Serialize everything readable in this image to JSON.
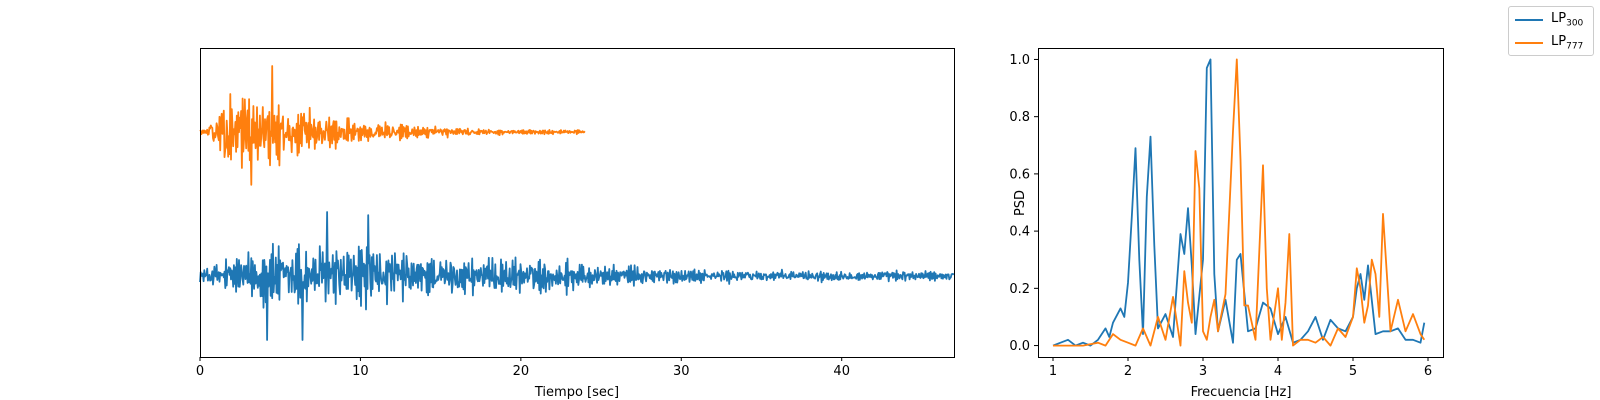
{
  "chart_data": [
    {
      "type": "line",
      "title": "",
      "xlabel": "Tiempo [sec]",
      "ylabel": "",
      "xlim": [
        0,
        47
      ],
      "xticks": [
        0,
        10,
        20,
        30,
        40
      ],
      "yticks_visible": false,
      "grid": false,
      "series": [
        {
          "name": "LP_300",
          "color": "#1f77b4",
          "duration": 47,
          "baseline": 0,
          "envelope": {
            "x": [
              0,
              1,
              2,
              3,
              4,
              5,
              6,
              7,
              8,
              9,
              10,
              11,
              12,
              14,
              16,
              18,
              20,
              23,
              25,
              28,
              30,
              35,
              40,
              47
            ],
            "amp": [
              0.18,
              0.4,
              0.55,
              0.7,
              0.9,
              0.75,
              0.95,
              0.85,
              0.9,
              0.85,
              0.95,
              0.8,
              0.7,
              0.6,
              0.55,
              0.5,
              0.45,
              0.4,
              0.3,
              0.25,
              0.2,
              0.18,
              0.15,
              0.13
            ]
          },
          "extremes": [
            {
              "x": 4.2,
              "y": -1.0
            },
            {
              "x": 6.4,
              "y": -1.0
            },
            {
              "x": 7.9,
              "y": 1.0
            },
            {
              "x": 10.5,
              "y": 0.95
            }
          ]
        },
        {
          "name": "LP_777",
          "color": "#ff7f0e",
          "duration": 24,
          "baseline": 1,
          "envelope": {
            "x": [
              0,
              0.5,
              1,
              1.5,
              2,
              3,
              4,
              4.5,
              5,
              6,
              7,
              8,
              9,
              10,
              12,
              14,
              16,
              18,
              20,
              24
            ],
            "amp": [
              0.1,
              0.25,
              0.6,
              0.85,
              1.0,
              0.95,
              0.95,
              1.0,
              0.8,
              0.75,
              0.55,
              0.5,
              0.35,
              0.3,
              0.2,
              0.15,
              0.12,
              0.08,
              0.06,
              0.05
            ]
          },
          "extremes": [
            {
              "x": 4.5,
              "y": 1.0
            },
            {
              "x": 3.2,
              "y": -0.8
            }
          ]
        }
      ]
    },
    {
      "type": "line",
      "title": "",
      "xlabel": "Frecuencia [Hz]",
      "ylabel": "PSD",
      "xlim": [
        0.8,
        6.2
      ],
      "ylim": [
        -0.04,
        1.04
      ],
      "xticks": [
        1,
        2,
        3,
        4,
        5,
        6
      ],
      "yticks": [
        0.0,
        0.2,
        0.4,
        0.6,
        0.8,
        1.0
      ],
      "ytick_labels": [
        "0.0",
        "0.2",
        "0.4",
        "0.6",
        "0.8",
        "1.0"
      ],
      "grid": false,
      "series": [
        {
          "name": "LP_300",
          "color": "#1f77b4",
          "x": [
            1.0,
            1.1,
            1.2,
            1.3,
            1.4,
            1.5,
            1.6,
            1.7,
            1.75,
            1.8,
            1.9,
            1.95,
            2.0,
            2.05,
            2.1,
            2.15,
            2.2,
            2.25,
            2.3,
            2.35,
            2.4,
            2.5,
            2.6,
            2.7,
            2.75,
            2.8,
            2.85,
            2.9,
            3.0,
            3.05,
            3.1,
            3.15,
            3.2,
            3.3,
            3.4,
            3.45,
            3.5,
            3.6,
            3.7,
            3.8,
            3.9,
            4.0,
            4.1,
            4.2,
            4.3,
            4.4,
            4.5,
            4.6,
            4.7,
            4.8,
            4.9,
            5.0,
            5.05,
            5.1,
            5.15,
            5.2,
            5.3,
            5.4,
            5.5,
            5.6,
            5.7,
            5.8,
            5.9,
            5.95
          ],
          "y": [
            0.0,
            0.01,
            0.02,
            0.0,
            0.01,
            0.0,
            0.02,
            0.06,
            0.03,
            0.08,
            0.13,
            0.1,
            0.22,
            0.45,
            0.69,
            0.3,
            0.04,
            0.52,
            0.73,
            0.35,
            0.06,
            0.11,
            0.03,
            0.39,
            0.32,
            0.48,
            0.28,
            0.04,
            0.3,
            0.97,
            1.0,
            0.25,
            0.05,
            0.16,
            0.01,
            0.3,
            0.32,
            0.05,
            0.06,
            0.15,
            0.13,
            0.04,
            0.1,
            0.01,
            0.02,
            0.05,
            0.1,
            0.02,
            0.09,
            0.06,
            0.05,
            0.1,
            0.2,
            0.25,
            0.16,
            0.28,
            0.04,
            0.05,
            0.05,
            0.06,
            0.02,
            0.02,
            0.01,
            0.08
          ]
        },
        {
          "name": "LP_777",
          "color": "#ff7f0e",
          "x": [
            1.0,
            1.2,
            1.4,
            1.6,
            1.7,
            1.8,
            1.9,
            2.0,
            2.1,
            2.2,
            2.3,
            2.4,
            2.5,
            2.6,
            2.7,
            2.75,
            2.8,
            2.85,
            2.9,
            2.95,
            3.0,
            3.05,
            3.1,
            3.15,
            3.2,
            3.3,
            3.4,
            3.45,
            3.5,
            3.55,
            3.6,
            3.7,
            3.8,
            3.85,
            3.9,
            4.0,
            4.05,
            4.1,
            4.15,
            4.2,
            4.3,
            4.4,
            4.5,
            4.6,
            4.7,
            4.8,
            4.9,
            5.0,
            5.05,
            5.1,
            5.15,
            5.2,
            5.25,
            5.3,
            5.35,
            5.4,
            5.5,
            5.6,
            5.7,
            5.8,
            5.9,
            5.95
          ],
          "y": [
            0.0,
            0.0,
            0.0,
            0.01,
            0.0,
            0.04,
            0.02,
            0.01,
            0.0,
            0.06,
            0.0,
            0.1,
            0.02,
            0.17,
            0.0,
            0.26,
            0.15,
            0.08,
            0.68,
            0.55,
            0.05,
            0.02,
            0.1,
            0.16,
            0.05,
            0.18,
            0.75,
            1.0,
            0.65,
            0.14,
            0.14,
            0.02,
            0.63,
            0.2,
            0.02,
            0.2,
            0.02,
            0.15,
            0.39,
            0.0,
            0.02,
            0.02,
            0.01,
            0.03,
            0.0,
            0.06,
            0.03,
            0.1,
            0.27,
            0.2,
            0.08,
            0.14,
            0.3,
            0.25,
            0.1,
            0.46,
            0.05,
            0.16,
            0.05,
            0.11,
            0.04,
            0.02
          ]
        }
      ]
    }
  ],
  "legend": {
    "placement": "top-right",
    "entries": [
      {
        "base": "LP",
        "sub": "300",
        "color": "#1f77b4"
      },
      {
        "base": "LP",
        "sub": "777",
        "color": "#ff7f0e"
      }
    ]
  }
}
